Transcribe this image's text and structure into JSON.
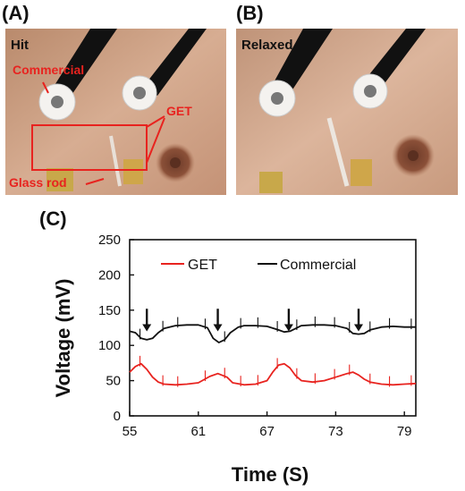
{
  "panels": {
    "a": {
      "letter": "(A)",
      "state": "Hit",
      "annotations": {
        "commercial": "Commercial",
        "get": "GET",
        "glass_rod": "Glass rod"
      }
    },
    "b": {
      "letter": "(B)",
      "state": "Relaxed"
    },
    "c": {
      "letter": "(C)"
    }
  },
  "colors": {
    "get": "#e8231f",
    "commercial": "#111111",
    "annotation": "#e8231f",
    "skin": "#c99a7d"
  },
  "chart_data": {
    "type": "line",
    "title": "",
    "xlabel": "Time (S)",
    "ylabel": "Voltage (mV)",
    "xlim": [
      55,
      80
    ],
    "ylim": [
      0,
      250
    ],
    "xticks": [
      55,
      61,
      67,
      73,
      79
    ],
    "yticks": [
      0,
      50,
      100,
      150,
      200,
      250
    ],
    "legend": "top",
    "series": [
      {
        "name": "GET",
        "color": "#e8231f",
        "x": [
          55.0,
          55.5,
          56.0,
          56.5,
          57.0,
          57.5,
          58.0,
          59.0,
          60.0,
          61.0,
          62.0,
          62.7,
          63.5,
          64.0,
          65.0,
          66.0,
          67.0,
          67.5,
          68.0,
          68.5,
          69.0,
          69.5,
          70.0,
          71.0,
          72.0,
          73.0,
          74.0,
          74.5,
          75.0,
          75.5,
          76.0,
          77.0,
          78.0,
          79.0,
          80.0
        ],
        "y": [
          62,
          70,
          74,
          66,
          55,
          48,
          45,
          44,
          45,
          47,
          56,
          60,
          55,
          47,
          44,
          45,
          50,
          62,
          72,
          74,
          68,
          57,
          50,
          48,
          50,
          55,
          60,
          62,
          58,
          52,
          48,
          45,
          44,
          45,
          46
        ]
      },
      {
        "name": "Commercial",
        "color": "#111111",
        "x": [
          55.0,
          55.5,
          56.0,
          56.5,
          57.0,
          57.5,
          58.0,
          59.0,
          60.0,
          61.0,
          61.8,
          62.3,
          62.8,
          63.3,
          63.8,
          64.5,
          65.0,
          66.0,
          67.0,
          68.0,
          68.5,
          69.0,
          69.5,
          70.0,
          71.0,
          72.0,
          73.0,
          74.0,
          74.5,
          75.0,
          75.5,
          76.0,
          77.0,
          78.0,
          79.0,
          80.0
        ],
        "y": [
          120,
          118,
          110,
          108,
          110,
          118,
          124,
          128,
          129,
          129,
          125,
          110,
          104,
          108,
          118,
          126,
          128,
          128,
          127,
          122,
          119,
          120,
          124,
          128,
          129,
          129,
          128,
          124,
          117,
          116,
          117,
          122,
          126,
          127,
          126,
          126
        ]
      }
    ],
    "spikes": {
      "x": [
        55.9,
        57.9,
        59.2,
        61.6,
        63.3,
        64.7,
        66.2,
        67.9,
        69.6,
        71.2,
        72.9,
        74.2,
        76.0,
        77.7,
        79.6
      ]
    },
    "arrows": {
      "x": [
        56.5,
        62.7,
        68.9,
        75.0
      ]
    }
  }
}
